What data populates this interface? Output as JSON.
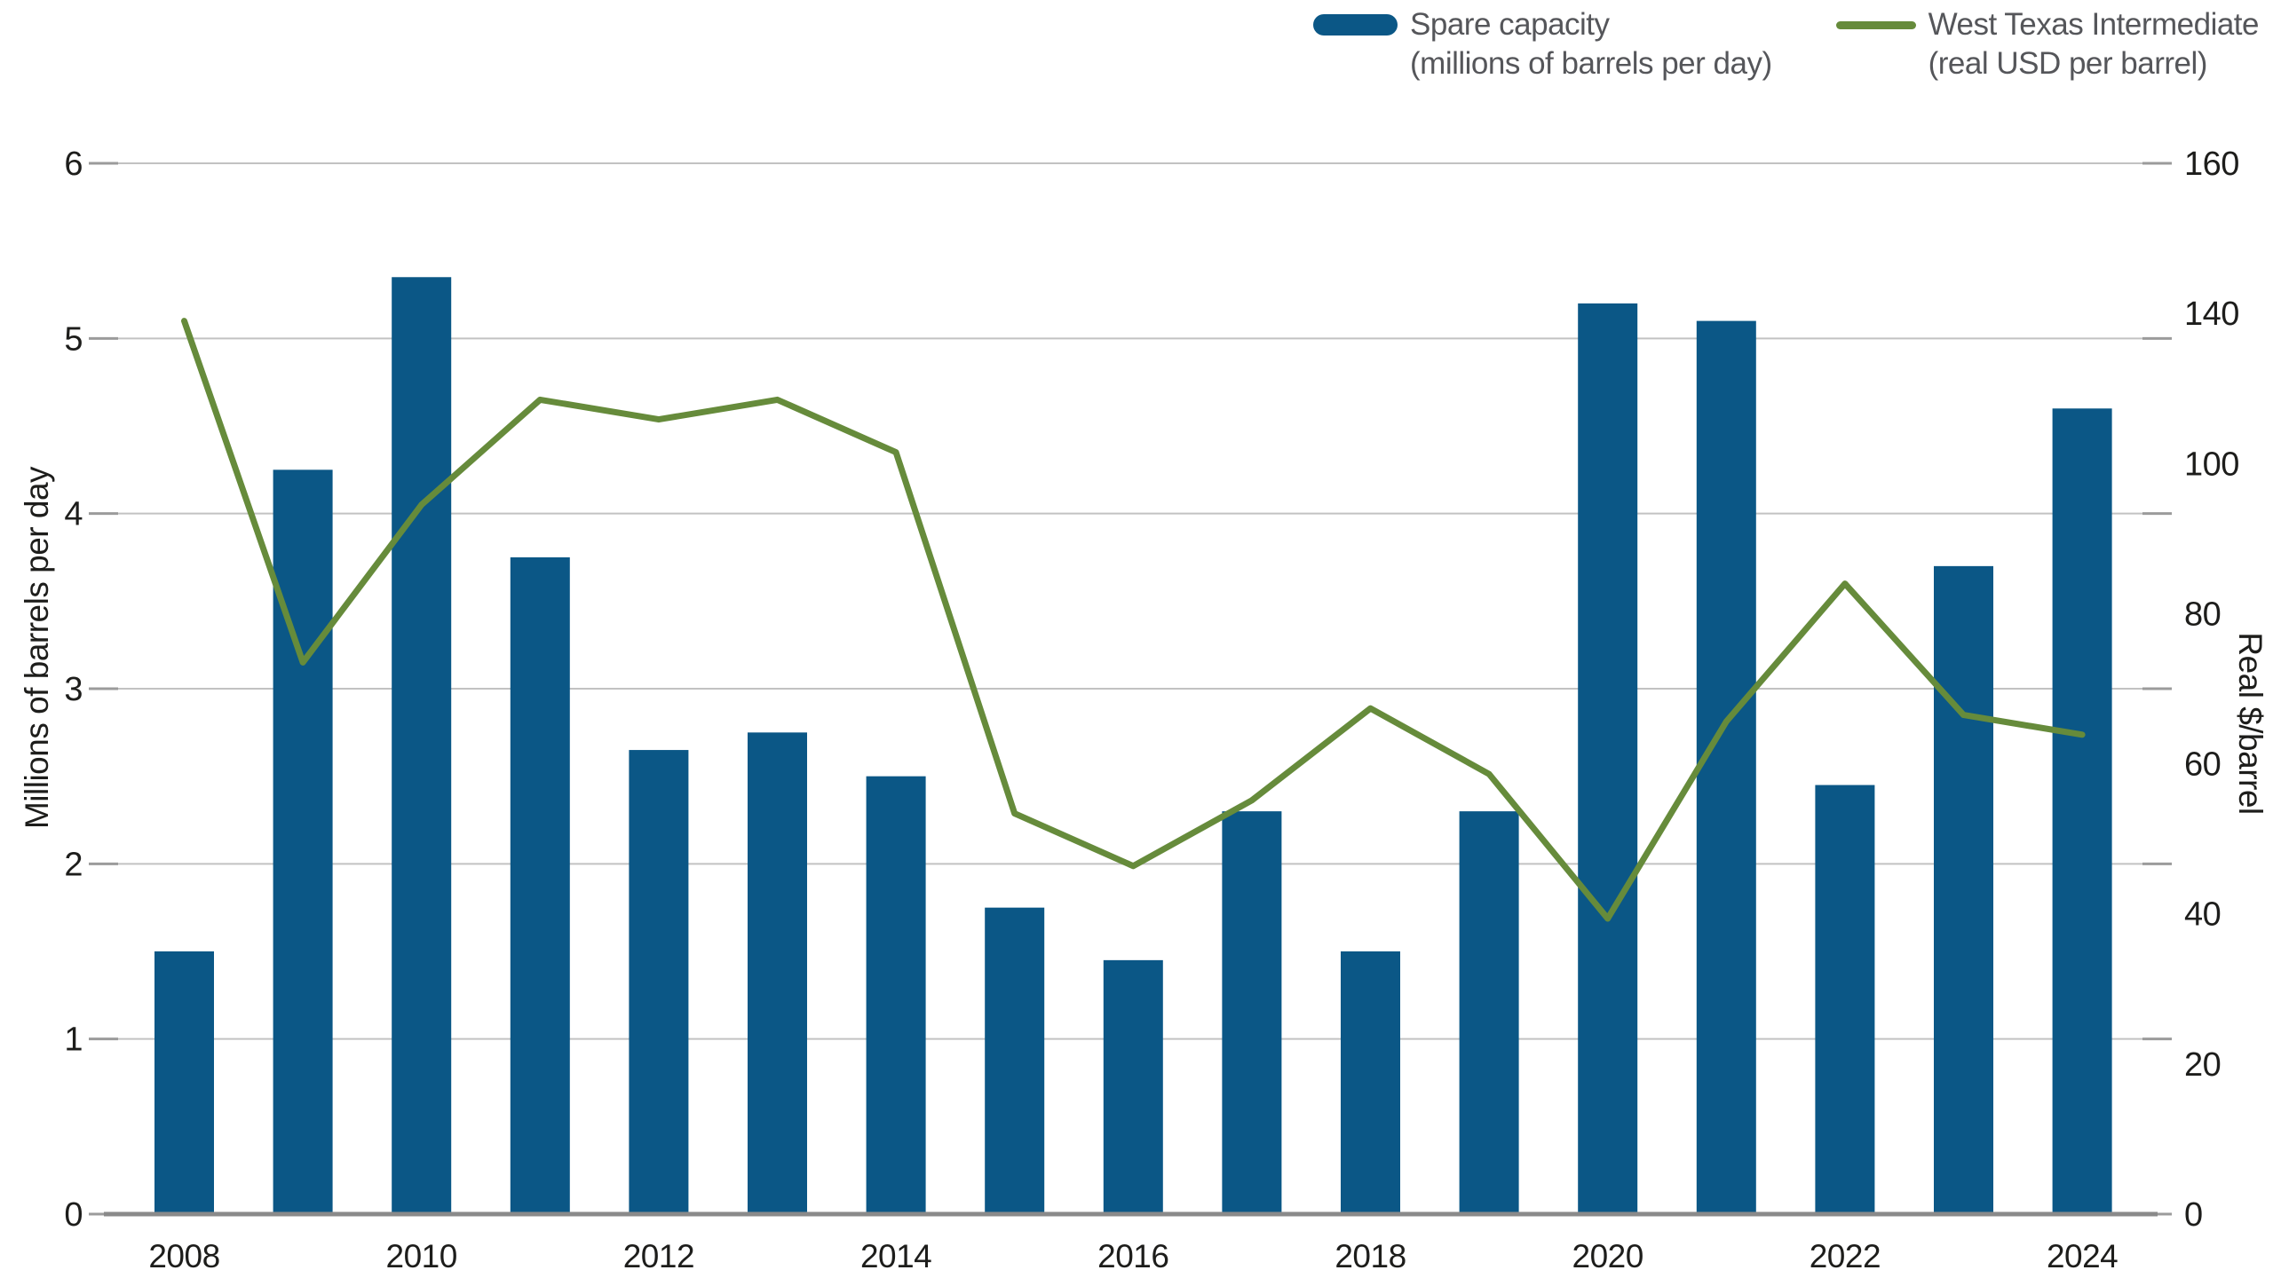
{
  "page": {
    "background": "#FFFFFF"
  },
  "legend": {
    "items": [
      {
        "label": "Spare capacity",
        "sublabel": "(millions of barrels per day)",
        "marker": "bar-swatch-pill",
        "color": "#0B5786"
      },
      {
        "label": "West Texas Intermediate",
        "sublabel": "(real USD per barrel)",
        "marker": "line-swatch-dash",
        "color": "#668B3B"
      }
    ]
  },
  "axes": {
    "left": {
      "title": "Millions of barrels per day",
      "tick_labels": [
        "6",
        "5",
        "4",
        "3",
        "2",
        "1",
        "0"
      ],
      "range": [
        0,
        6
      ]
    },
    "right": {
      "title": "Real $/barrel",
      "tick_labels": [
        "160",
        "140",
        "100",
        "80",
        "60",
        "40",
        "20",
        "0"
      ],
      "note": "labels printed evenly spaced top-to-bottom as in source; 120 not shown"
    },
    "x": {
      "tick_labels": [
        "2008",
        "2010",
        "2012",
        "2014",
        "2016",
        "2018",
        "2020",
        "2022",
        "2024"
      ]
    }
  },
  "colors": {
    "bar_blue": "#0B5786",
    "line_green": "#668B3B",
    "gridline": "#C2C2C2",
    "tick_dash": "#9B9B9B",
    "axis_line": "#8A8A8A",
    "tick_text": "#1D1D1B",
    "legend_text": "#55565A"
  },
  "chart_data": {
    "type": "bar+line",
    "title": "",
    "categories": [
      2008,
      2009,
      2010,
      2011,
      2012,
      2013,
      2014,
      2015,
      2016,
      2017,
      2018,
      2019,
      2020,
      2021,
      2022,
      2023,
      2024
    ],
    "series": [
      {
        "name": "Spare capacity (millions of barrels per day)",
        "type": "bar",
        "axis": "left",
        "color": "#0B5786",
        "values": [
          1.5,
          4.25,
          5.35,
          3.75,
          2.65,
          2.75,
          2.5,
          1.75,
          1.45,
          2.3,
          1.5,
          2.3,
          5.2,
          5.1,
          2.45,
          3.7,
          4.6
        ]
      },
      {
        "name": "West Texas Intermediate (real USD per barrel)",
        "type": "line",
        "axis": "right",
        "color": "#668B3B",
        "values": [
          136,
          84,
          108,
          124,
          121,
          124,
          116,
          61,
          53,
          63,
          77,
          67,
          45,
          75,
          96,
          76,
          73
        ]
      }
    ],
    "left_ylabel": "Millions of barrels per day",
    "right_ylabel": "Real $/barrel",
    "left_ylim": [
      0,
      6
    ],
    "right_ylim": [
      0,
      160
    ],
    "grid": "horizontal",
    "legend_position": "top-right"
  }
}
